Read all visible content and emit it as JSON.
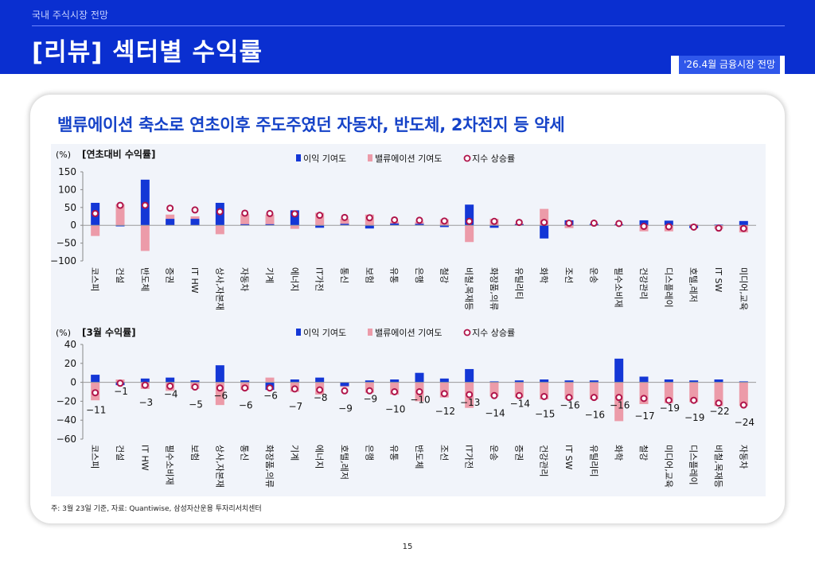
{
  "header": {
    "section": "국내 주식시장 전망",
    "title": "[리뷰] 섹터별 수익률",
    "badge": "'26.4월 금융시장 전망"
  },
  "card": {
    "headline": "밸류에이션 축소로 연초이후 주도주였던 자동차, 반도체, 2차전지 등 약세"
  },
  "colors": {
    "earnings": "#1437d6",
    "valuation": "#ec9ba9",
    "index_fill": "#ffffff",
    "index_stroke": "#b0144a"
  },
  "chart_data": [
    {
      "type": "bar",
      "title": "[연초대비 수익률]",
      "unit": "(%)",
      "legend": [
        "이익 기여도",
        "밸류에이션 기여도",
        "지수 상승률"
      ],
      "legend_position": "top",
      "ylim": [
        -100,
        150
      ],
      "yticks": [
        150,
        100,
        50,
        0,
        -50,
        -100
      ],
      "categories": [
        "코스피",
        "건설",
        "반도체",
        "증권",
        "IT HW",
        "상사,자본재",
        "자동차",
        "기계",
        "에너지",
        "IT가전",
        "통신",
        "보험",
        "유통",
        "은행",
        "철강",
        "비철,목재등",
        "화장품,의류",
        "유틸리티",
        "화학",
        "조선",
        "운송",
        "필수소비재",
        "건강관리",
        "디스플레이",
        "호텔,레저",
        "IT SW",
        "미디어,교육"
      ],
      "series": [
        {
          "name": "이익 기여도",
          "values": [
            63,
            -3,
            128,
            18,
            18,
            63,
            3,
            3,
            42,
            -7,
            4,
            -9,
            5,
            4,
            -5,
            58,
            -7,
            3,
            -37,
            14,
            4,
            3,
            14,
            13,
            -8,
            2,
            12
          ]
        },
        {
          "name": "밸류에이션 기여도",
          "values": [
            -30,
            59,
            -72,
            30,
            25,
            -25,
            31,
            30,
            -10,
            35,
            18,
            30,
            10,
            10,
            17,
            -47,
            18,
            5,
            46,
            -8,
            3,
            3,
            -17,
            -17,
            3,
            -10,
            -20
          ]
        },
        {
          "name": "지수 상승률",
          "values": [
            33,
            56,
            56,
            48,
            43,
            38,
            34,
            33,
            32,
            28,
            22,
            21,
            15,
            14,
            12,
            11,
            11,
            8,
            8,
            6,
            6,
            5,
            -3,
            -4,
            -5,
            -8,
            -9
          ]
        }
      ]
    },
    {
      "type": "bar",
      "title": "[3월 수익률]",
      "unit": "(%)",
      "legend": [
        "이익 기여도",
        "밸류에이션 기여도",
        "지수 상승률"
      ],
      "legend_position": "top",
      "ylim": [
        -60,
        40
      ],
      "yticks": [
        40,
        20,
        0,
        -20,
        -40,
        -60
      ],
      "categories": [
        "코스피",
        "건설",
        "IT HW",
        "필수소비재",
        "보험",
        "상사,자본재",
        "통신",
        "화장품,의류",
        "기계",
        "에너지",
        "호텔,레저",
        "은행",
        "유통",
        "반도체",
        "조선",
        "IT가전",
        "운송",
        "증권",
        "건강관리",
        "IT SW",
        "유틸리티",
        "화학",
        "철강",
        "미디어,교육",
        "디스플레이",
        "비철,목재등",
        "자동차"
      ],
      "series": [
        {
          "name": "이익 기여도",
          "values": [
            8,
            -3,
            4,
            5,
            2,
            18,
            2,
            -8,
            3,
            5,
            -4,
            2,
            3,
            10,
            4,
            14,
            1,
            2,
            3,
            2,
            2,
            25,
            6,
            3,
            2,
            3,
            1
          ]
        },
        {
          "name": "밸류에이션 기여도",
          "values": [
            -19,
            3,
            -7,
            -9,
            -7,
            -24,
            -8,
            5,
            -10,
            -13,
            -5,
            -11,
            -13,
            -20,
            -16,
            -27,
            -15,
            -16,
            -18,
            -18,
            -18,
            -41,
            -23,
            -22,
            -21,
            -25,
            -25
          ]
        },
        {
          "name": "지수 상승률",
          "values": [
            -11,
            -1,
            -3,
            -4,
            -5,
            -6,
            -6,
            -6,
            -7,
            -8,
            -9,
            -9,
            -10,
            -10,
            -12,
            -13,
            -14,
            -14,
            -15,
            -16,
            -16,
            -16,
            -17,
            -19,
            -19,
            -22,
            -24
          ]
        }
      ]
    }
  ],
  "footnote": "주: 3월 23일 기준, 자료: Quantiwise, 삼성자산운용 투자리서치센터",
  "page_number": "15"
}
